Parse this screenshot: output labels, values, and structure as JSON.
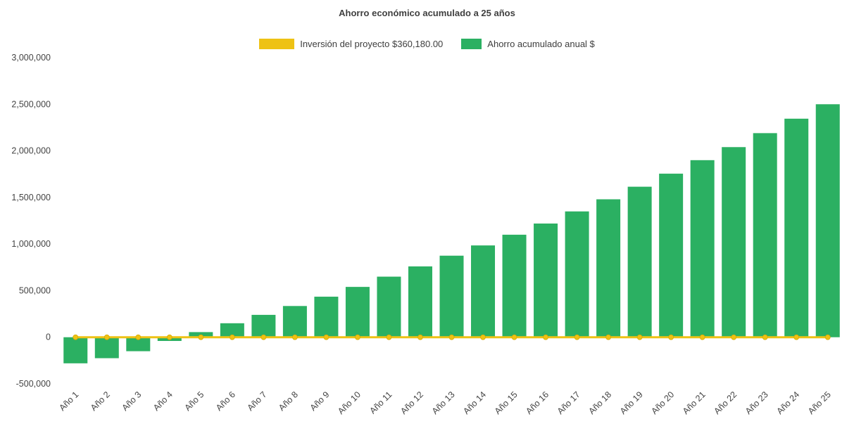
{
  "page": {
    "title": "Ahorro económico acumulado a 25 años"
  },
  "legend": {
    "investment_label": "Inversión del proyecto $360,180.00",
    "savings_label": "Ahorro acumulado anual $"
  },
  "colors": {
    "bar_green": "#2bb062",
    "line_yellow": "#eec214",
    "line_marker_stroke": "#d9a800",
    "axis_text": "#444444",
    "title_text": "#3f3f3f",
    "background": "#ffffff"
  },
  "chart_data": {
    "type": "bar",
    "title": "Ahorro económico acumulado a 25 años",
    "categories": [
      "Año 1",
      "Año 2",
      "Año 3",
      "Año 4",
      "Año 5",
      "Año 6",
      "Año 7",
      "Año 8",
      "Año 9",
      "Año 10",
      "Año 11",
      "Año 12",
      "Año 13",
      "Año 14",
      "Año 15",
      "Año 16",
      "Año 17",
      "Año 18",
      "Año 19",
      "Año 20",
      "Año 21",
      "Año 22",
      "Año 23",
      "Año 24",
      "Año 25"
    ],
    "series": [
      {
        "name": "Ahorro acumulado anual $",
        "type": "bar",
        "color": "#2bb062",
        "values": [
          -280000,
          -225000,
          -150000,
          -40000,
          55000,
          150000,
          240000,
          335000,
          435000,
          540000,
          650000,
          760000,
          875000,
          985000,
          1100000,
          1220000,
          1350000,
          1480000,
          1615000,
          1755000,
          1900000,
          2040000,
          2190000,
          2345000,
          2500000
        ]
      },
      {
        "name": "Inversión del proyecto $360,180.00",
        "type": "line",
        "color": "#eec214",
        "values": [
          0,
          0,
          0,
          0,
          0,
          0,
          0,
          0,
          0,
          0,
          0,
          0,
          0,
          0,
          0,
          0,
          0,
          0,
          0,
          0,
          0,
          0,
          0,
          0,
          0
        ]
      }
    ],
    "ylim": [
      -500000,
      3000000
    ],
    "yticks": [
      {
        "value": 3000000,
        "label": "3,000,000"
      },
      {
        "value": 2500000,
        "label": "2,500,000"
      },
      {
        "value": 2000000,
        "label": "2,000,000"
      },
      {
        "value": 1500000,
        "label": "1,500,000"
      },
      {
        "value": 1000000,
        "label": "1,000,000"
      },
      {
        "value": 500000,
        "label": "500,000"
      },
      {
        "value": 0,
        "label": "0"
      },
      {
        "value": -500000,
        "label": "-500,000"
      }
    ],
    "grid": false,
    "legend_position": "top",
    "xtick_rotation_deg": 45
  }
}
